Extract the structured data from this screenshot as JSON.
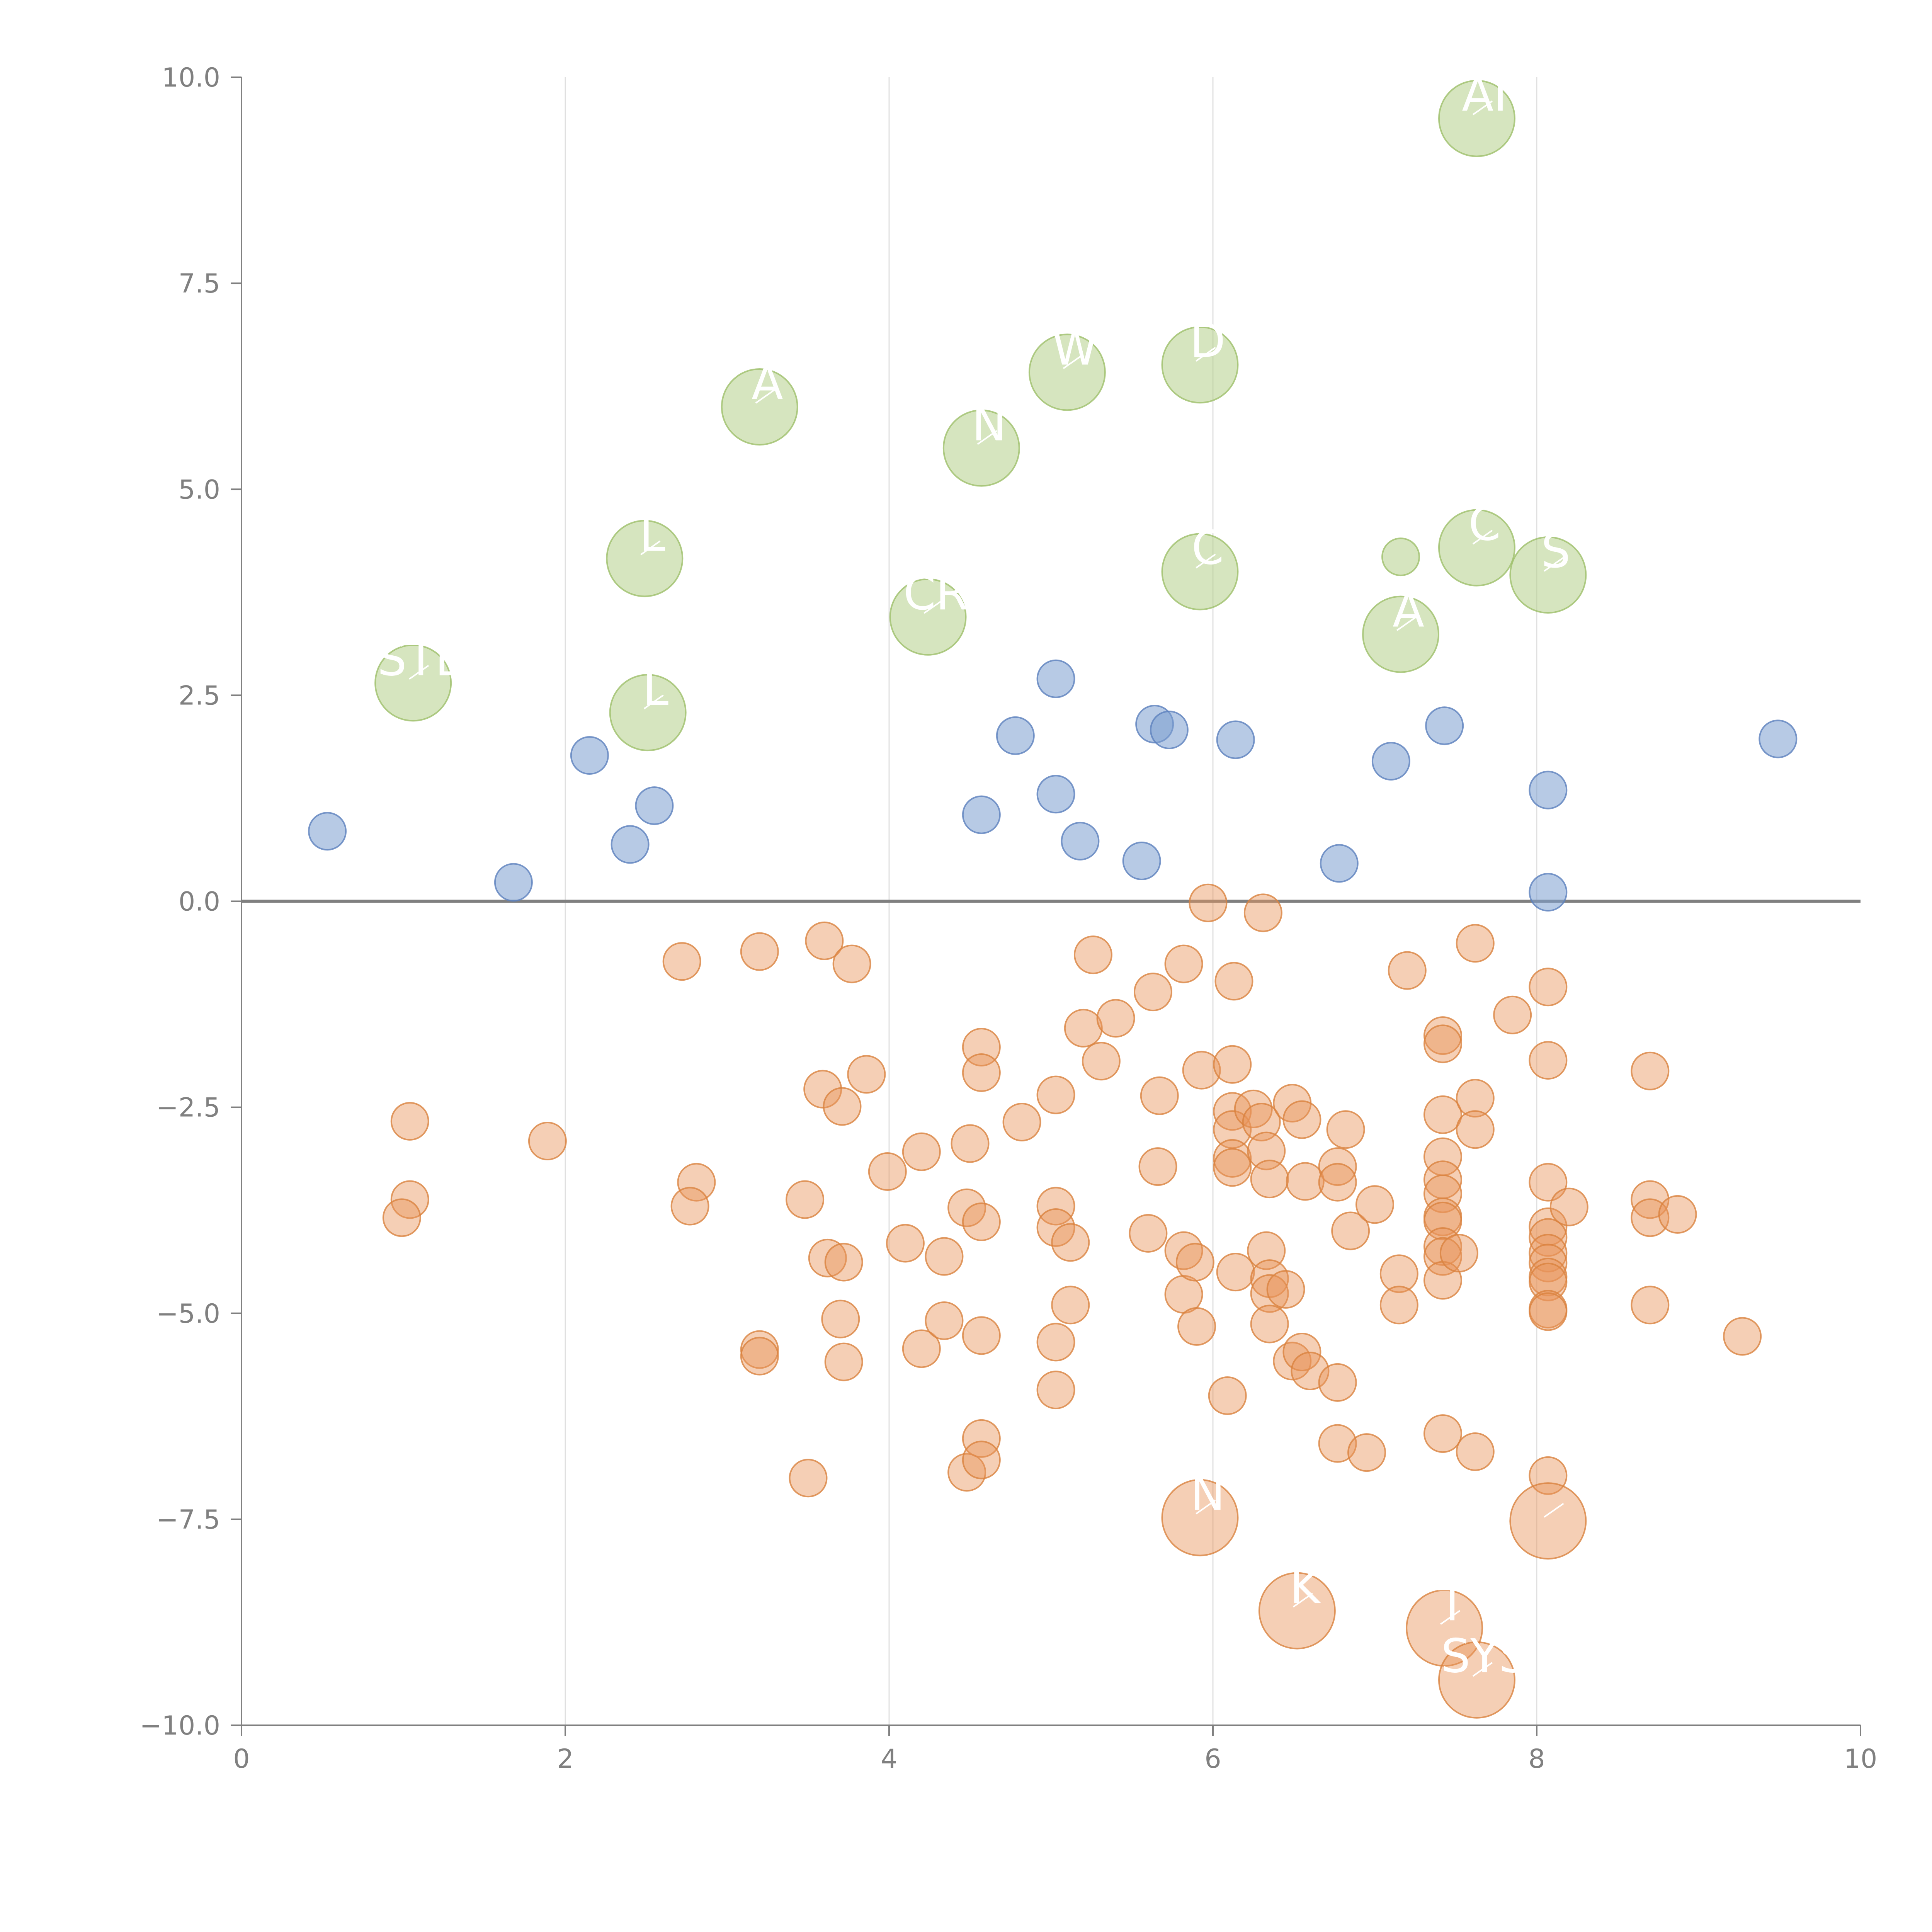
{
  "chart_data": {
    "type": "scatter",
    "title": "",
    "xlabel": "",
    "ylabel": "",
    "xlim": [
      0,
      10
    ],
    "ylim": [
      -10,
      10
    ],
    "x_ticks": [
      0,
      2,
      4,
      6,
      8,
      10
    ],
    "y_ticks": [
      10.0,
      7.5,
      5.0,
      2.5,
      0.0,
      -2.5,
      -5.0,
      -7.5,
      -10.0
    ],
    "x_tick_labels": [
      "0",
      "2",
      "4",
      "6",
      "8",
      "10"
    ],
    "y_tick_labels": [
      "10.0",
      "7.5",
      "5.0",
      "2.5",
      "0.0",
      "−2.5",
      "−5.0",
      "−7.5",
      "−10.0"
    ],
    "grid": "vertical",
    "reference_line_y": 0,
    "colors": {
      "blue_fill": "#7c9fd0",
      "blue_stroke": "#5b80bd",
      "green_fill": "#b5d08a",
      "green_stroke": "#9ebf6a",
      "orange_fill": "#e8955a",
      "orange_stroke": "#d9823f"
    },
    "series": [
      {
        "name": "blue",
        "color": "blue",
        "points": [
          [
            0.53,
            0.85,
            1
          ],
          [
            1.68,
            0.23,
            1
          ],
          [
            2.15,
            1.77,
            1
          ],
          [
            2.4,
            0.69,
            1
          ],
          [
            2.55,
            1.16,
            1
          ],
          [
            4.57,
            1.05,
            1
          ],
          [
            4.78,
            2.01,
            1
          ],
          [
            5.03,
            2.7,
            1
          ],
          [
            5.03,
            1.3,
            1
          ],
          [
            5.18,
            0.73,
            1
          ],
          [
            5.56,
            0.49,
            1
          ],
          [
            5.64,
            2.15,
            1
          ],
          [
            5.73,
            2.08,
            1
          ],
          [
            6.14,
            1.96,
            1
          ],
          [
            6.78,
            0.46,
            1
          ],
          [
            7.1,
            1.7,
            1
          ],
          [
            7.43,
            2.13,
            1
          ],
          [
            8.07,
            1.35,
            1
          ],
          [
            8.07,
            0.11,
            1
          ],
          [
            9.49,
            1.97,
            1
          ]
        ]
      },
      {
        "name": "green",
        "color": "green",
        "points": [
          [
            1.06,
            2.65,
            2
          ],
          [
            2.49,
            4.16,
            2
          ],
          [
            2.51,
            2.29,
            2
          ],
          [
            3.2,
            6.0,
            2
          ],
          [
            4.24,
            3.45,
            2
          ],
          [
            4.57,
            5.5,
            2
          ],
          [
            5.1,
            6.42,
            2
          ],
          [
            5.92,
            6.51,
            2
          ],
          [
            5.92,
            4.0,
            2
          ],
          [
            7.16,
            4.18,
            1
          ],
          [
            7.16,
            3.24,
            2
          ],
          [
            7.63,
            9.5,
            2
          ],
          [
            7.63,
            4.29,
            2
          ],
          [
            8.07,
            3.96,
            2
          ]
        ]
      },
      {
        "name": "orange",
        "color": "orange",
        "points": [
          [
            1.04,
            -2.67,
            1
          ],
          [
            1.04,
            -3.62,
            1
          ],
          [
            0.99,
            -3.84,
            1
          ],
          [
            1.89,
            -2.91,
            1
          ],
          [
            2.72,
            -0.73,
            1
          ],
          [
            2.81,
            -3.41,
            1
          ],
          [
            2.77,
            -3.7,
            1
          ],
          [
            3.2,
            -0.61,
            1
          ],
          [
            3.2,
            -5.44,
            1
          ],
          [
            3.2,
            -5.52,
            1
          ],
          [
            3.48,
            -3.62,
            1
          ],
          [
            3.5,
            -7.0,
            1
          ],
          [
            3.6,
            -0.48,
            1
          ],
          [
            3.59,
            -2.28,
            1
          ],
          [
            3.62,
            -4.33,
            1
          ],
          [
            3.71,
            -2.49,
            1
          ],
          [
            3.72,
            -4.38,
            1
          ],
          [
            3.7,
            -5.07,
            1
          ],
          [
            3.72,
            -5.59,
            1
          ],
          [
            3.77,
            -0.76,
            1
          ],
          [
            3.86,
            -2.1,
            1
          ],
          [
            3.99,
            -3.28,
            1
          ],
          [
            4.1,
            -4.15,
            1
          ],
          [
            4.2,
            -3.04,
            1
          ],
          [
            4.2,
            -5.43,
            1
          ],
          [
            4.34,
            -4.31,
            1
          ],
          [
            4.34,
            -5.09,
            1
          ],
          [
            4.48,
            -3.72,
            1
          ],
          [
            4.5,
            -2.94,
            1
          ],
          [
            4.48,
            -6.93,
            1
          ],
          [
            4.57,
            -1.77,
            1
          ],
          [
            4.57,
            -2.08,
            1
          ],
          [
            4.57,
            -3.89,
            1
          ],
          [
            4.57,
            -5.27,
            1
          ],
          [
            4.57,
            -6.52,
            1
          ],
          [
            4.57,
            -6.78,
            1
          ],
          [
            4.82,
            -2.68,
            1
          ],
          [
            5.03,
            -2.35,
            1
          ],
          [
            5.03,
            -3.7,
            1
          ],
          [
            5.03,
            -3.96,
            1
          ],
          [
            5.03,
            -5.35,
            1
          ],
          [
            5.03,
            -5.93,
            1
          ],
          [
            5.12,
            -4.14,
            1
          ],
          [
            5.12,
            -4.9,
            1
          ],
          [
            5.2,
            -1.54,
            1
          ],
          [
            5.26,
            -0.65,
            1
          ],
          [
            5.31,
            -1.94,
            1
          ],
          [
            5.4,
            -1.42,
            1
          ],
          [
            5.6,
            -4.03,
            1
          ],
          [
            5.63,
            -1.1,
            1
          ],
          [
            5.66,
            -3.22,
            1
          ],
          [
            5.67,
            -2.36,
            1
          ],
          [
            5.82,
            -0.76,
            1
          ],
          [
            5.82,
            -4.24,
            1
          ],
          [
            5.82,
            -4.77,
            1
          ],
          [
            5.89,
            -4.38,
            1
          ],
          [
            5.9,
            -5.16,
            1
          ],
          [
            5.93,
            -2.05,
            1
          ],
          [
            5.97,
            -0.02,
            1
          ],
          [
            6.09,
            -6.0,
            1
          ],
          [
            6.13,
            -0.97,
            1
          ],
          [
            6.12,
            -1.98,
            1
          ],
          [
            6.12,
            -2.55,
            1
          ],
          [
            6.12,
            -2.77,
            1
          ],
          [
            6.12,
            -3.12,
            1
          ],
          [
            6.12,
            -3.23,
            1
          ],
          [
            6.14,
            -4.5,
            1
          ],
          [
            6.25,
            -2.52,
            1
          ],
          [
            6.31,
            -0.14,
            1
          ],
          [
            6.3,
            -2.68,
            1
          ],
          [
            6.33,
            -3.03,
            1
          ],
          [
            6.33,
            -4.24,
            1
          ],
          [
            6.35,
            -3.37,
            1
          ],
          [
            6.35,
            -4.58,
            1
          ],
          [
            6.35,
            -4.76,
            1
          ],
          [
            6.35,
            -5.13,
            1
          ],
          [
            6.45,
            -4.71,
            1
          ],
          [
            6.49,
            -2.45,
            1
          ],
          [
            6.49,
            -5.58,
            1
          ],
          [
            6.55,
            -2.65,
            1
          ],
          [
            6.55,
            -5.47,
            1
          ],
          [
            6.57,
            -3.4,
            1
          ],
          [
            6.6,
            -5.7,
            1
          ],
          [
            6.77,
            -3.22,
            1
          ],
          [
            6.77,
            -3.41,
            1
          ],
          [
            6.77,
            -5.84,
            1
          ],
          [
            6.77,
            -6.58,
            1
          ],
          [
            6.82,
            -2.77,
            1
          ],
          [
            6.85,
            -4.0,
            1
          ],
          [
            6.95,
            -6.69,
            1
          ],
          [
            7.0,
            -3.68,
            1
          ],
          [
            7.15,
            -4.52,
            1
          ],
          [
            7.15,
            -4.9,
            1
          ],
          [
            7.2,
            -0.84,
            1
          ],
          [
            7.42,
            -1.63,
            1
          ],
          [
            7.42,
            -1.73,
            1
          ],
          [
            7.42,
            -2.59,
            1
          ],
          [
            7.42,
            -3.1,
            1
          ],
          [
            7.42,
            -3.38,
            1
          ],
          [
            7.42,
            -3.55,
            1
          ],
          [
            7.42,
            -3.83,
            1
          ],
          [
            7.42,
            -3.88,
            1
          ],
          [
            7.42,
            -4.19,
            1
          ],
          [
            7.42,
            -4.31,
            1
          ],
          [
            7.42,
            -4.6,
            1
          ],
          [
            7.42,
            -6.46,
            1
          ],
          [
            7.52,
            -4.27,
            1
          ],
          [
            7.62,
            -0.51,
            1
          ],
          [
            7.62,
            -2.39,
            1
          ],
          [
            7.62,
            -2.77,
            1
          ],
          [
            7.62,
            -6.68,
            1
          ],
          [
            7.85,
            -1.38,
            1
          ],
          [
            8.07,
            -1.04,
            1
          ],
          [
            8.07,
            -1.93,
            1
          ],
          [
            8.07,
            -3.41,
            1
          ],
          [
            8.07,
            -3.95,
            1
          ],
          [
            8.07,
            -4.08,
            1
          ],
          [
            8.07,
            -4.27,
            1
          ],
          [
            8.07,
            -4.39,
            1
          ],
          [
            8.07,
            -4.56,
            1
          ],
          [
            8.07,
            -4.62,
            1
          ],
          [
            8.07,
            -4.95,
            1
          ],
          [
            8.07,
            -4.98,
            1
          ],
          [
            8.07,
            -6.97,
            1
          ],
          [
            8.2,
            -3.71,
            1
          ],
          [
            8.7,
            -2.06,
            1
          ],
          [
            8.7,
            -3.62,
            1
          ],
          [
            8.7,
            -3.84,
            1
          ],
          [
            8.7,
            -4.9,
            1
          ],
          [
            8.87,
            -3.8,
            1
          ],
          [
            9.27,
            -5.28,
            1
          ],
          [
            5.92,
            -7.48,
            2
          ],
          [
            6.52,
            -8.61,
            2
          ],
          [
            7.43,
            -8.82,
            2
          ],
          [
            7.63,
            -9.45,
            2
          ],
          [
            8.07,
            -7.52,
            2
          ]
        ]
      }
    ],
    "annotations": [
      {
        "text": "STE",
        "x": 1.06,
        "y": 2.65
      },
      {
        "text": "L",
        "x": 2.49,
        "y": 4.16
      },
      {
        "text": "L",
        "x": 2.51,
        "y": 2.29
      },
      {
        "text": "A",
        "x": 3.2,
        "y": 6.0
      },
      {
        "text": "CR",
        "x": 4.24,
        "y": 3.45
      },
      {
        "text": "N",
        "x": 4.57,
        "y": 5.5
      },
      {
        "text": "W",
        "x": 5.1,
        "y": 6.42
      },
      {
        "text": "D",
        "x": 5.92,
        "y": 6.51
      },
      {
        "text": "C",
        "x": 5.92,
        "y": 4.0
      },
      {
        "text": "A",
        "x": 7.16,
        "y": 3.24
      },
      {
        "text": "AI",
        "x": 7.63,
        "y": 9.5
      },
      {
        "text": "C",
        "x": 7.63,
        "y": 4.29
      },
      {
        "text": "S",
        "x": 8.07,
        "y": 3.96
      },
      {
        "text": "N",
        "x": 5.92,
        "y": -7.48
      },
      {
        "text": "K",
        "x": 6.52,
        "y": -8.61
      },
      {
        "text": "T",
        "x": 7.43,
        "y": -8.82
      },
      {
        "text": "SYS",
        "x": 7.63,
        "y": -9.45
      },
      {
        "text": "",
        "x": 8.07,
        "y": -7.52
      }
    ]
  }
}
